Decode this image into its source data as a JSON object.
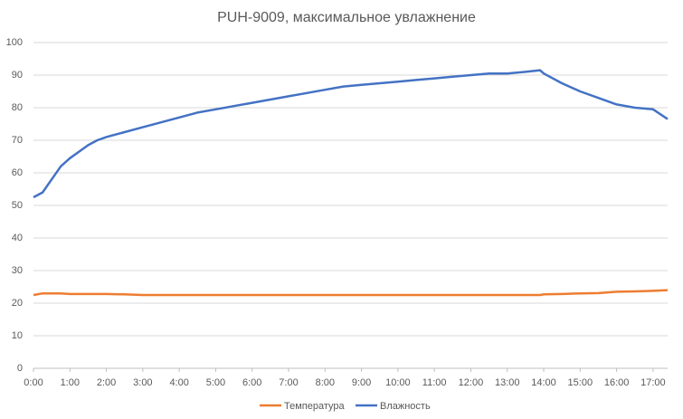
{
  "chart_data": {
    "type": "line",
    "title": "PUH-9009, максимальное увлажнение",
    "x": [
      0,
      0.25,
      0.5,
      0.75,
      1,
      1.25,
      1.5,
      1.75,
      2,
      2.5,
      3,
      3.5,
      4,
      4.5,
      5,
      5.5,
      6,
      6.5,
      7,
      7.5,
      8,
      8.5,
      9,
      9.5,
      10,
      10.5,
      11,
      11.5,
      12,
      12.5,
      13,
      13.5,
      13.9,
      14,
      14.5,
      15,
      15.5,
      16,
      16.5,
      17,
      17.4
    ],
    "series": [
      {
        "name": "Температура",
        "color": "#ed7d31",
        "values": [
          22.5,
          23,
          23,
          23,
          22.8,
          22.8,
          22.8,
          22.8,
          22.8,
          22.7,
          22.5,
          22.5,
          22.5,
          22.5,
          22.5,
          22.5,
          22.5,
          22.5,
          22.5,
          22.5,
          22.5,
          22.5,
          22.5,
          22.5,
          22.5,
          22.5,
          22.5,
          22.5,
          22.5,
          22.5,
          22.5,
          22.5,
          22.5,
          22.7,
          22.8,
          23,
          23.1,
          23.5,
          23.6,
          23.8,
          24
        ]
      },
      {
        "name": "Влажность",
        "color": "#4472c4",
        "values": [
          52.5,
          54,
          58,
          62,
          64.5,
          66.5,
          68.5,
          70,
          71,
          72.5,
          74,
          75.5,
          77,
          78.5,
          79.5,
          80.5,
          81.5,
          82.5,
          83.5,
          84.5,
          85.5,
          86.5,
          87,
          87.5,
          88,
          88.5,
          89,
          89.5,
          90,
          90.5,
          90.5,
          91,
          91.5,
          90.5,
          87.5,
          85,
          83,
          81,
          80,
          79.5,
          76.5
        ]
      }
    ],
    "xlim": [
      0,
      17.4
    ],
    "xticks": [
      {
        "value": 0,
        "label": "0:00"
      },
      {
        "value": 1,
        "label": "1:00"
      },
      {
        "value": 2,
        "label": "2:00"
      },
      {
        "value": 3,
        "label": "3:00"
      },
      {
        "value": 4,
        "label": "4:00"
      },
      {
        "value": 5,
        "label": "5:00"
      },
      {
        "value": 6,
        "label": "6:00"
      },
      {
        "value": 7,
        "label": "7:00"
      },
      {
        "value": 8,
        "label": "8:00"
      },
      {
        "value": 9,
        "label": "9:00"
      },
      {
        "value": 10,
        "label": "10:00"
      },
      {
        "value": 11,
        "label": "11:00"
      },
      {
        "value": 12,
        "label": "12:00"
      },
      {
        "value": 13,
        "label": "13:00"
      },
      {
        "value": 14,
        "label": "14:00"
      },
      {
        "value": 15,
        "label": "15:00"
      },
      {
        "value": 16,
        "label": "16:00"
      },
      {
        "value": 17,
        "label": "17:00"
      }
    ],
    "ylim": [
      0,
      100
    ],
    "yticks": [
      0,
      10,
      20,
      30,
      40,
      50,
      60,
      70,
      80,
      90,
      100
    ],
    "grid": true,
    "legend": "bottom"
  }
}
